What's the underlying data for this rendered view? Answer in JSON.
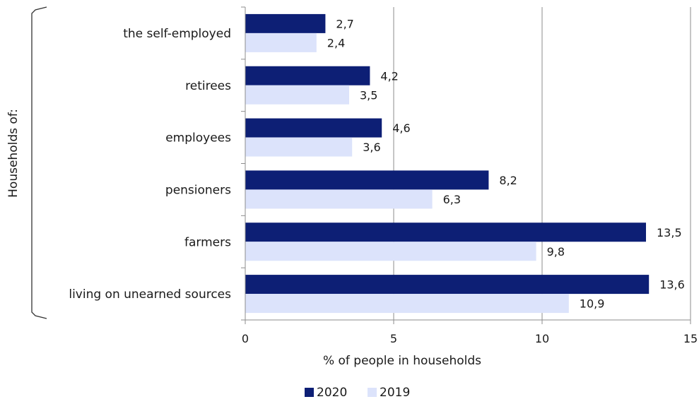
{
  "chart_data": {
    "type": "bar",
    "orientation": "horizontal",
    "categories": [
      "the self-employed",
      "retirees",
      "employees",
      "pensioners",
      "farmers",
      "living on unearned sources"
    ],
    "series": [
      {
        "name": "2020",
        "color": "#0d1f75",
        "values": [
          2.7,
          4.2,
          4.6,
          8.2,
          13.5,
          13.6
        ],
        "labels": [
          "2,7",
          "4,2",
          "4,6",
          "8,2",
          "13,5",
          "13,6"
        ]
      },
      {
        "name": "2019",
        "color": "#dce3fb",
        "values": [
          2.4,
          3.5,
          3.6,
          6.3,
          9.8,
          10.9
        ],
        "labels": [
          "2,4",
          "3,5",
          "3,6",
          "6,3",
          "9,8",
          "10,9"
        ]
      }
    ],
    "xlabel": "% of people in households",
    "ylabel": "Households of:",
    "xlim": [
      0,
      15
    ],
    "xticks": [
      0,
      5,
      10,
      15
    ],
    "grid": true,
    "legend": "bottom-center"
  }
}
